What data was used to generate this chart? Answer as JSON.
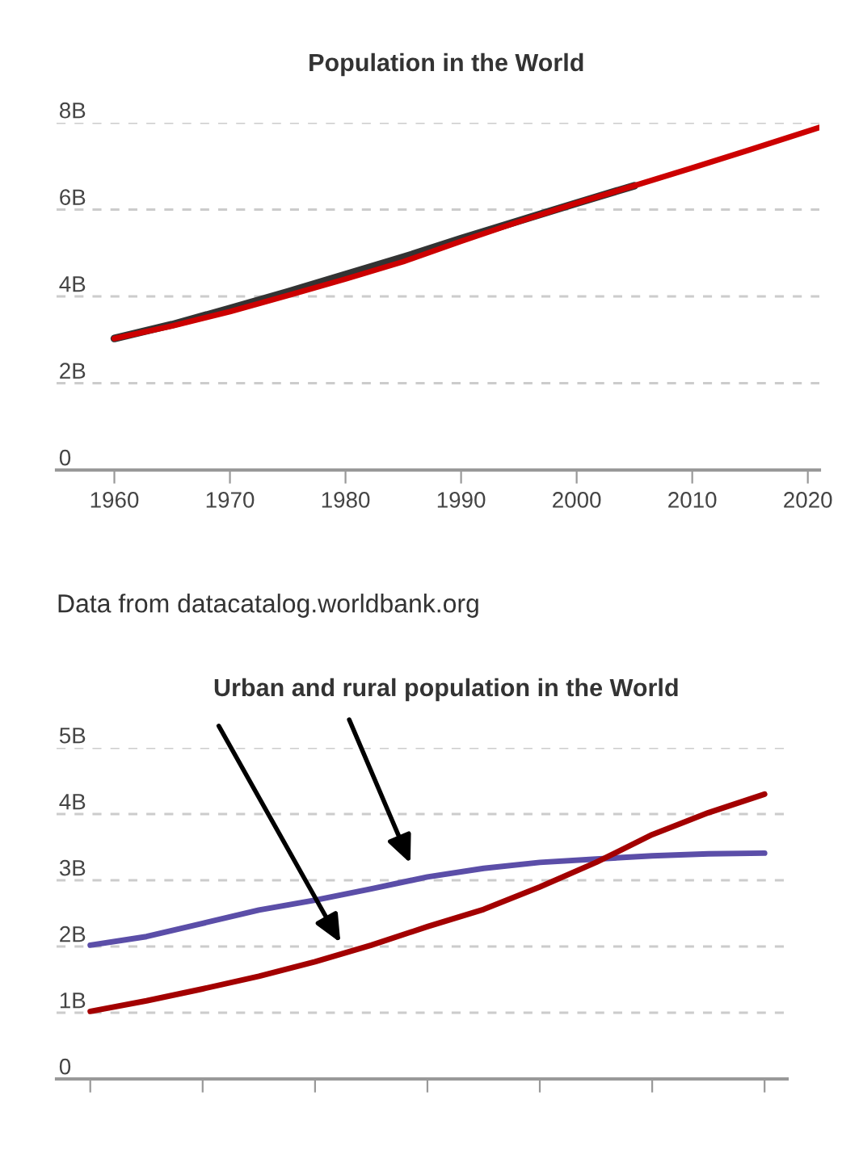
{
  "chart_data": [
    {
      "type": "line",
      "title": "Population in the World",
      "x": [
        1960,
        1965,
        1970,
        1975,
        1980,
        1985,
        1990,
        1995,
        2000,
        2005,
        2010,
        2015,
        2021
      ],
      "series": [
        {
          "color": "#333333",
          "values": [
            3.03,
            3.35,
            3.72,
            4.1,
            4.5,
            4.9,
            5.33,
            5.74,
            6.15,
            6.55,
            null,
            null,
            null
          ]
        },
        {
          "color": "#cc0000",
          "values": [
            3.03,
            3.32,
            3.65,
            4.02,
            4.4,
            4.8,
            5.27,
            5.72,
            6.15,
            6.55,
            6.96,
            7.38,
            7.89
          ]
        }
      ],
      "xlim": [
        1955,
        2021
      ],
      "xticks": [
        1960,
        1970,
        1980,
        1990,
        2000,
        2010,
        2020
      ],
      "ylim": [
        0,
        8
      ],
      "yticks": [
        {
          "value": 0,
          "label": "0"
        },
        {
          "value": 2,
          "label": "2B"
        },
        {
          "value": 4,
          "label": "4B"
        },
        {
          "value": 6,
          "label": "6B"
        },
        {
          "value": 8,
          "label": "8B"
        }
      ],
      "grid": "y",
      "legend": false,
      "marker": "none",
      "line_style": "solid",
      "annotations": [
        "Data from datacatalog.worldbank.org"
      ]
    },
    {
      "type": "line",
      "title": "Urban and rural population in the World",
      "categories": [
        null,
        null,
        null,
        null,
        null,
        null,
        null,
        null,
        null,
        null,
        null,
        null,
        null
      ],
      "series": [
        {
          "color": "#5b4ea8",
          "values": [
            2.02,
            2.15,
            2.35,
            2.55,
            2.7,
            2.87,
            3.05,
            3.18,
            3.27,
            3.32,
            3.37,
            3.4,
            3.41
          ]
        },
        {
          "color": "#a30000",
          "values": [
            1.02,
            1.18,
            1.36,
            1.55,
            1.77,
            2.02,
            2.3,
            2.56,
            2.9,
            3.27,
            3.69,
            4.02,
            4.3
          ]
        }
      ],
      "ylim": [
        0,
        5
      ],
      "yticks": [
        {
          "value": 0,
          "label": "0"
        },
        {
          "value": 1,
          "label": "1B"
        },
        {
          "value": 2,
          "label": "2B"
        },
        {
          "value": 3,
          "label": "3B"
        },
        {
          "value": 4,
          "label": "4B"
        },
        {
          "value": 5,
          "label": "5B"
        }
      ],
      "grid": "y",
      "legend": false,
      "marker": "none",
      "line_style": "solid",
      "tick_labels": "y"
    }
  ]
}
